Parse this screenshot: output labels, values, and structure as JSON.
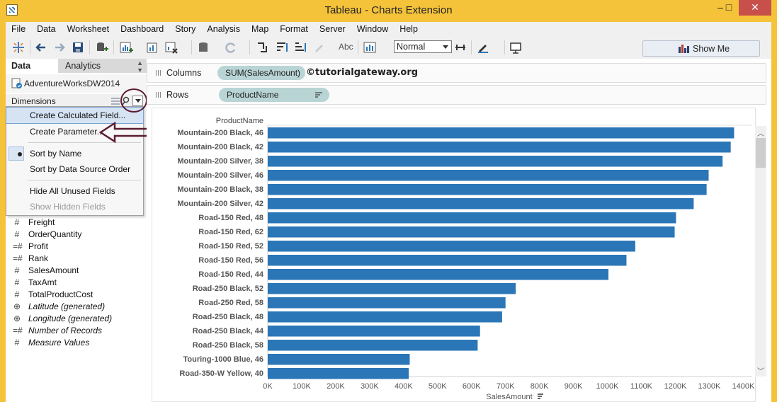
{
  "window": {
    "title": "Tableau - Charts Extension",
    "minimize_glyph": "–",
    "maximize_glyph": "□",
    "close_glyph": "✕"
  },
  "menu": [
    "File",
    "Data",
    "Worksheet",
    "Dashboard",
    "Story",
    "Analysis",
    "Map",
    "Format",
    "Server",
    "Window",
    "Help"
  ],
  "toolbar": {
    "text_label_button": "Abc",
    "fit_select": "Normal",
    "show_me_label": "Show Me"
  },
  "left_panel": {
    "tabs": [
      "Data",
      "Analytics"
    ],
    "datasource": "AdventureWorksDW2014",
    "dimensions_label": "Dimensions",
    "measures": [
      {
        "icon": "#",
        "name": "Freight",
        "italic": false
      },
      {
        "icon": "#",
        "name": "OrderQuantity",
        "italic": false
      },
      {
        "icon": "=#",
        "name": "Profit",
        "italic": false
      },
      {
        "icon": "=#",
        "name": "Rank",
        "italic": false
      },
      {
        "icon": "#",
        "name": "SalesAmount",
        "italic": false
      },
      {
        "icon": "#",
        "name": "TaxAmt",
        "italic": false
      },
      {
        "icon": "#",
        "name": "TotalProductCost",
        "italic": false
      },
      {
        "icon": "⊕",
        "name": "Latitude (generated)",
        "italic": true
      },
      {
        "icon": "⊕",
        "name": "Longitude (generated)",
        "italic": true
      },
      {
        "icon": "=#",
        "name": "Number of Records",
        "italic": true
      },
      {
        "icon": "#",
        "name": "Measure Values",
        "italic": true
      }
    ]
  },
  "dropdown_menu": {
    "items": [
      "Create Calculated Field...",
      "Create Parameter...",
      "Sort by Name",
      "Sort by Data Source Order",
      "Hide All Unused Fields",
      "Show Hidden Fields"
    ],
    "checked_item": "Sort by Name",
    "disabled_item": "Show Hidden Fields"
  },
  "shelves": {
    "columns_label": "Columns",
    "columns_pill": "SUM(SalesAmount)",
    "rows_label": "Rows",
    "rows_pill": "ProductName"
  },
  "watermark": "©tutorialgateway.org",
  "chart_data": {
    "type": "bar",
    "orientation": "horizontal",
    "row_header": "ProductName",
    "xlabel": "SalesAmount",
    "xlim": [
      0,
      1420000
    ],
    "x_ticks": [
      "0K",
      "100K",
      "200K",
      "300K",
      "400K",
      "500K",
      "600K",
      "700K",
      "800K",
      "900K",
      "1000K",
      "1100K",
      "1200K",
      "1300K",
      "1400K"
    ],
    "bar_color": "#2b76b7",
    "categories": [
      "Mountain-200 Black, 46",
      "Mountain-200 Black, 42",
      "Mountain-200 Silver, 38",
      "Mountain-200 Silver, 46",
      "Mountain-200 Black, 38",
      "Mountain-200 Silver, 42",
      "Road-150 Red, 48",
      "Road-150 Red, 62",
      "Road-150 Red, 52",
      "Road-150 Red, 56",
      "Road-150 Red, 44",
      "Road-250 Black, 52",
      "Road-250 Red, 58",
      "Road-250 Black, 48",
      "Road-250 Black, 44",
      "Road-250 Black, 58",
      "Touring-1000 Blue, 46",
      "Road-350-W Yellow, 40"
    ],
    "values": [
      1373000,
      1363000,
      1339000,
      1298000,
      1292000,
      1254000,
      1202000,
      1198000,
      1082000,
      1056000,
      1003000,
      730000,
      700000,
      690000,
      625000,
      618000,
      418000,
      415000
    ]
  }
}
